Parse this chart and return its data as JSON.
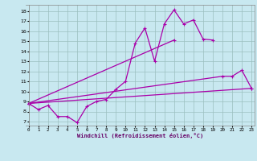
{
  "xlabel": "Windchill (Refroidissement éolien,°C)",
  "bg_color": "#c8e8f0",
  "line_color": "#aa00aa",
  "grid_color": "#9bbfbf",
  "x_ticks": [
    0,
    1,
    2,
    3,
    4,
    5,
    6,
    7,
    8,
    9,
    10,
    11,
    12,
    13,
    14,
    15,
    16,
    17,
    18,
    19,
    20,
    21,
    22,
    23
  ],
  "y_ticks": [
    7,
    8,
    9,
    10,
    11,
    12,
    13,
    14,
    15,
    16,
    17,
    18
  ],
  "xlim": [
    -0.3,
    23.3
  ],
  "ylim": [
    6.6,
    18.6
  ],
  "line1_x": [
    0,
    1,
    2,
    3,
    4,
    5,
    6,
    7,
    8,
    9,
    10,
    11,
    12,
    13,
    14,
    15,
    16,
    17,
    18,
    19
  ],
  "line1_y": [
    8.8,
    8.2,
    8.6,
    7.5,
    7.5,
    6.9,
    8.5,
    9.0,
    9.2,
    10.2,
    11.0,
    14.8,
    16.3,
    13.0,
    16.7,
    18.1,
    16.7,
    17.1,
    15.2,
    15.1
  ],
  "line2_x": [
    0,
    15
  ],
  "line2_y": [
    8.8,
    15.1
  ],
  "line3_x": [
    0,
    20,
    21,
    22,
    23
  ],
  "line3_y": [
    8.8,
    11.5,
    11.5,
    12.1,
    10.3
  ],
  "line4_x": [
    0,
    23
  ],
  "line4_y": [
    8.8,
    10.3
  ]
}
